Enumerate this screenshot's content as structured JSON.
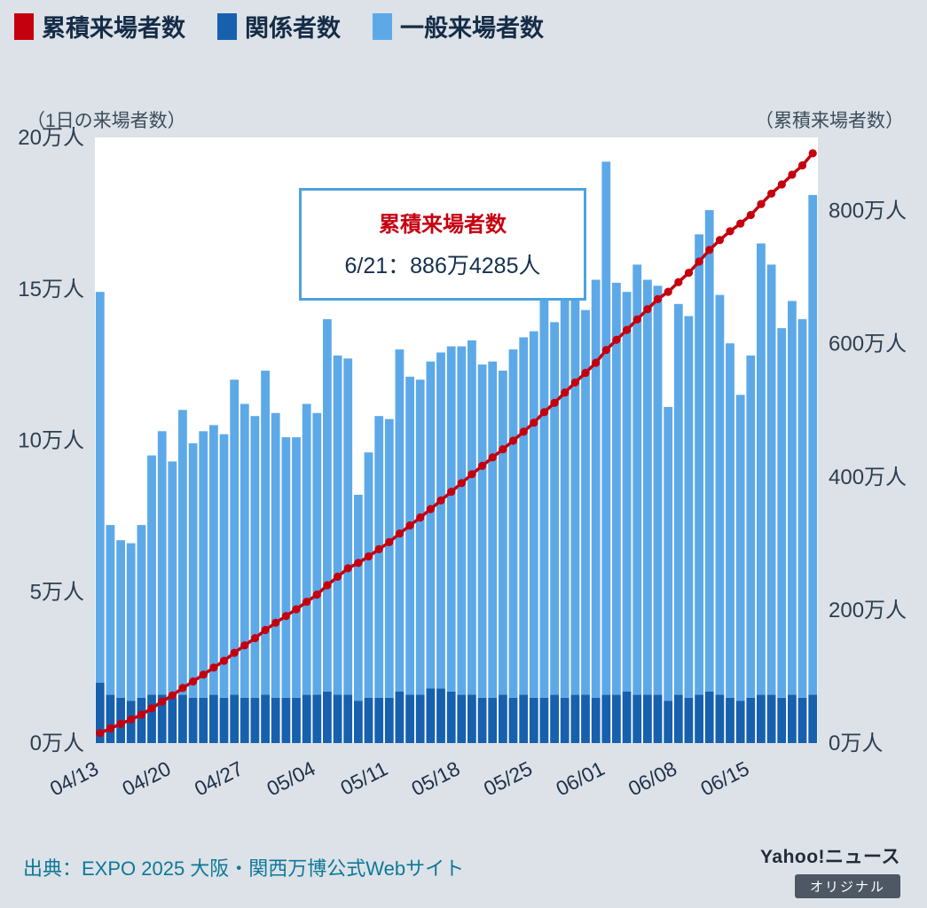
{
  "legend": {
    "items": [
      {
        "label": "累積来場者数",
        "color": "#c4000f"
      },
      {
        "label": "関係者数",
        "color": "#1760ae"
      },
      {
        "label": "一般来場者数",
        "color": "#5da9e8"
      }
    ]
  },
  "axes": {
    "left_caption": "（1日の来場者数）",
    "right_caption": "（累積来場者数）"
  },
  "annotation": {
    "title": "累積来場者数",
    "value": "6/21：886万4285人"
  },
  "footer": {
    "source": "出典：EXPO 2025 大阪・関西万博公式Webサイト",
    "brand": "Yahoo!ニュース",
    "badge": "オリジナル"
  },
  "chart_data": {
    "type": "bar",
    "subtype": "stacked-bars-with-cumulative-line",
    "x": [
      "04/13",
      "04/14",
      "04/15",
      "04/16",
      "04/17",
      "04/18",
      "04/19",
      "04/20",
      "04/21",
      "04/22",
      "04/23",
      "04/24",
      "04/25",
      "04/26",
      "04/27",
      "04/28",
      "04/29",
      "04/30",
      "05/01",
      "05/02",
      "05/03",
      "05/04",
      "05/05",
      "05/06",
      "05/07",
      "05/08",
      "05/09",
      "05/10",
      "05/11",
      "05/12",
      "05/13",
      "05/14",
      "05/15",
      "05/16",
      "05/17",
      "05/18",
      "05/19",
      "05/20",
      "05/21",
      "05/22",
      "05/23",
      "05/24",
      "05/25",
      "05/26",
      "05/27",
      "05/28",
      "05/29",
      "05/30",
      "05/31",
      "06/01",
      "06/02",
      "06/03",
      "06/04",
      "06/05",
      "06/06",
      "06/07",
      "06/08",
      "06/09",
      "06/10",
      "06/11",
      "06/12",
      "06/13",
      "06/14",
      "06/15",
      "06/16",
      "06/17",
      "06/18",
      "06/19",
      "06/20",
      "06/21"
    ],
    "unit": "万人",
    "series": [
      {
        "name": "関係者数",
        "type": "bar",
        "stack": "daily",
        "color": "#1760ae",
        "values": [
          2.0,
          1.6,
          1.5,
          1.4,
          1.5,
          1.6,
          1.6,
          1.5,
          1.6,
          1.5,
          1.5,
          1.6,
          1.5,
          1.6,
          1.5,
          1.5,
          1.6,
          1.5,
          1.5,
          1.5,
          1.6,
          1.6,
          1.7,
          1.6,
          1.6,
          1.4,
          1.5,
          1.5,
          1.5,
          1.7,
          1.6,
          1.6,
          1.8,
          1.8,
          1.7,
          1.6,
          1.6,
          1.5,
          1.5,
          1.6,
          1.5,
          1.6,
          1.5,
          1.5,
          1.6,
          1.5,
          1.6,
          1.6,
          1.5,
          1.6,
          1.6,
          1.7,
          1.6,
          1.6,
          1.6,
          1.4,
          1.6,
          1.5,
          1.6,
          1.7,
          1.6,
          1.5,
          1.4,
          1.5,
          1.6,
          1.6,
          1.5,
          1.6,
          1.5,
          1.6
        ]
      },
      {
        "name": "一般来場者数",
        "type": "bar",
        "stack": "daily",
        "color": "#5da9e8",
        "values": [
          12.9,
          5.6,
          5.2,
          5.2,
          5.7,
          7.9,
          8.7,
          7.8,
          9.4,
          8.4,
          8.8,
          8.9,
          8.7,
          10.4,
          9.7,
          9.3,
          10.7,
          9.4,
          8.6,
          8.6,
          9.6,
          9.3,
          12.3,
          11.2,
          11.1,
          6.8,
          8.1,
          9.3,
          9.2,
          11.3,
          10.5,
          10.4,
          10.8,
          11.1,
          11.4,
          11.5,
          11.7,
          11.0,
          11.1,
          10.7,
          11.5,
          11.8,
          12.1,
          14.4,
          12.3,
          14.0,
          13.6,
          12.7,
          13.8,
          17.6,
          13.6,
          13.2,
          14.2,
          13.7,
          13.5,
          9.7,
          12.9,
          12.6,
          15.2,
          15.9,
          13.2,
          11.7,
          10.1,
          11.3,
          14.9,
          14.2,
          12.2,
          13.0,
          12.5,
          16.5
        ]
      },
      {
        "name": "累積来場者数",
        "type": "line",
        "axis": "right",
        "color": "#c4000f",
        "derivation": "running sum of daily totals (関係者数 + 一般来場者数)",
        "last_point_label": "6/21：886万4285人",
        "last_point_value_people": 8864285
      }
    ],
    "left_axis": {
      "caption": "（1日の来場者数）",
      "ticks": [
        "0万人",
        "5万人",
        "10万人",
        "15万人",
        "20万人"
      ],
      "tick_values": [
        0,
        5,
        10,
        15,
        20
      ],
      "max": 20
    },
    "right_axis": {
      "caption": "（累積来場者数）",
      "ticks": [
        "0万人",
        "200万人",
        "400万人",
        "600万人",
        "800万人"
      ],
      "tick_values": [
        0,
        200,
        400,
        600,
        800
      ],
      "max": 910
    },
    "x_ticks": [
      "04/13",
      "04/20",
      "04/27",
      "05/04",
      "05/11",
      "05/18",
      "05/25",
      "06/01",
      "06/08",
      "06/15"
    ],
    "x_tick_idx": [
      0,
      7,
      14,
      21,
      28,
      35,
      42,
      49,
      56,
      63
    ],
    "grid": false,
    "legend_position": "top-left"
  }
}
